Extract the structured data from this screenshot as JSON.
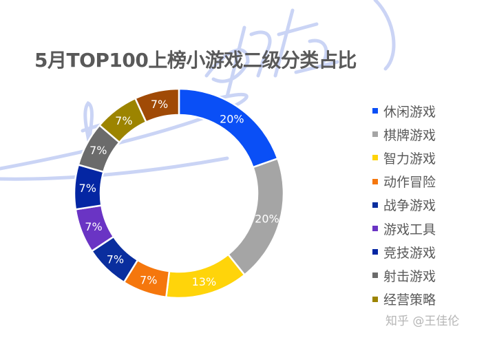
{
  "title": "5月TOP100上榜小游戏二级分类占比",
  "credit": "知乎 @王佳伦",
  "chart_data": {
    "type": "pie",
    "subtype": "donut",
    "title": "5月TOP100上榜小游戏二级分类占比",
    "legend_position": "right",
    "start_angle": "12 o'clock, clockwise",
    "categories": [
      "休闲游戏",
      "棋牌游戏",
      "智力游戏",
      "动作冒险",
      "战争游戏",
      "游戏工具",
      "竞技游戏",
      "射击游戏",
      "经营策略",
      "(未标注)"
    ],
    "values": [
      20,
      20,
      13,
      7,
      7,
      7,
      7,
      7,
      7,
      7
    ],
    "labels": [
      "20%",
      "20%",
      "13%",
      "7%",
      "7%",
      "7%",
      "7%",
      "7%",
      "7%",
      "7%"
    ],
    "colors": [
      "#0a4ff6",
      "#a5a5a5",
      "#ffd40a",
      "#f5770d",
      "#0a2e9e",
      "#6a34c4",
      "#0426a3",
      "#6b6b6b",
      "#9c8400",
      "#a04a06"
    ]
  },
  "legend": [
    {
      "label": "休闲游戏",
      "color": "#0a4ff6"
    },
    {
      "label": "棋牌游戏",
      "color": "#a5a5a5"
    },
    {
      "label": "智力游戏",
      "color": "#ffd40a"
    },
    {
      "label": "动作冒险",
      "color": "#f5770d"
    },
    {
      "label": "战争游戏",
      "color": "#0a2e9e"
    },
    {
      "label": "游戏工具",
      "color": "#6a34c4"
    },
    {
      "label": "竞技游戏",
      "color": "#0426a3"
    },
    {
      "label": "射击游戏",
      "color": "#6b6b6b"
    },
    {
      "label": "经营策略",
      "color": "#9c8400"
    }
  ]
}
